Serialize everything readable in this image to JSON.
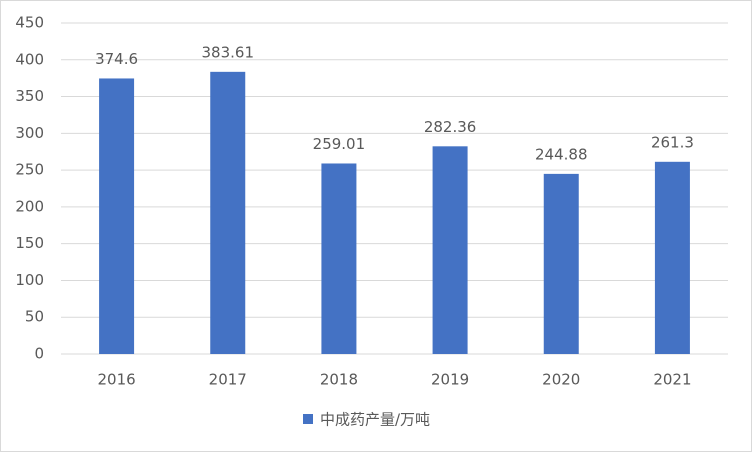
{
  "chart_data": {
    "type": "bar",
    "categories": [
      "2016",
      "2017",
      "2018",
      "2019",
      "2020",
      "2021"
    ],
    "series": [
      {
        "name": "中成药产量/万吨",
        "color": "#4472c4",
        "values": [
          374.6,
          383.61,
          259.01,
          282.36,
          244.88,
          261.3
        ]
      }
    ],
    "ylim": [
      0,
      450
    ],
    "yticks": [
      0,
      50,
      100,
      150,
      200,
      250,
      300,
      350,
      400,
      450
    ],
    "grid": true,
    "legend": "bottom",
    "data_labels": true
  }
}
